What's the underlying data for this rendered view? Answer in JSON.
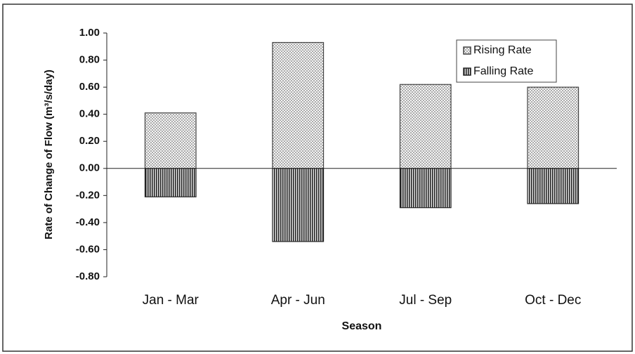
{
  "chart_data": {
    "type": "bar",
    "x_label": "Season",
    "y_label": "Rate of Change of Flow (m³/s/day)",
    "categories": [
      "Jan - Mar",
      "Apr - Jun",
      "Jul - Sep",
      "Oct - Dec"
    ],
    "series": [
      {
        "name": "Rising Rate",
        "color": "#444444",
        "pattern": "dots",
        "values": [
          0.41,
          0.93,
          0.62,
          0.6
        ]
      },
      {
        "name": "Falling Rate",
        "color": "#222222",
        "pattern": "vertical-lines",
        "values": [
          -0.21,
          -0.54,
          -0.29,
          -0.26
        ]
      }
    ],
    "ylim": [
      -0.8,
      1.0
    ],
    "yticks": [
      {
        "value": 1.0,
        "label": "1.00"
      },
      {
        "value": 0.8,
        "label": "0.80"
      },
      {
        "value": 0.6,
        "label": "0.60"
      },
      {
        "value": 0.4,
        "label": "0.40"
      },
      {
        "value": 0.2,
        "label": "0.20"
      },
      {
        "value": 0,
        "label": "0.00"
      },
      {
        "value": -0.2,
        "label": "-0.20"
      },
      {
        "value": -0.4,
        "label": "-0.40"
      },
      {
        "value": -0.6,
        "label": "-0.60"
      },
      {
        "value": -0.8,
        "label": "-0.80"
      }
    ],
    "legend": "top-right",
    "grid": false
  }
}
